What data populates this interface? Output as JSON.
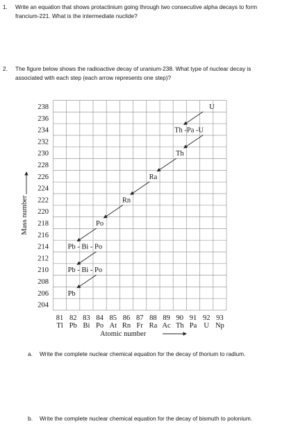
{
  "question1": {
    "number": "1.",
    "lines": [
      "Write an equation that shows protactinium going through two consecutive alpha decays to form",
      "francium-221.  What is the intermediate nuclide?"
    ]
  },
  "question2": {
    "number": "2.",
    "lines": [
      "The figure below shows the radioactive decay of uranium-238.  What type of nuclear decay is",
      "associated with each step (each arrow represents one step)?"
    ]
  },
  "figure": {
    "y_axis_label": "Mass number",
    "x_axis_label": "Atomic number",
    "mass_numbers": [
      "238",
      "236",
      "234",
      "232",
      "230",
      "228",
      "226",
      "224",
      "222",
      "220",
      "218",
      "216",
      "214",
      "212",
      "210",
      "208",
      "206",
      "204"
    ],
    "atomic_numbers": [
      "81",
      "82",
      "83",
      "84",
      "85",
      "86",
      "87",
      "88",
      "89",
      "90",
      "91",
      "92",
      "93"
    ],
    "element_symbols": [
      "Tl",
      "Pb",
      "Bi",
      "Po",
      "At",
      "Rn",
      "Fr",
      "Ra",
      "Ac",
      "Th",
      "Pa",
      "U",
      "Np"
    ],
    "nuclide_labels": [
      "U",
      "Th -Pa -U",
      "Th",
      "Ra",
      "Rn",
      "Po",
      "Pb - Bi - Po",
      "Pb - Bi - Po",
      "Pb"
    ]
  },
  "part_a": {
    "letter": "a.",
    "text": "Write the complete nuclear chemical equation for the decay of thorium to radium."
  },
  "part_b": {
    "letter": "b.",
    "text": "Write the complete nuclear chemical equation for the decay of bismuth to polonium."
  }
}
